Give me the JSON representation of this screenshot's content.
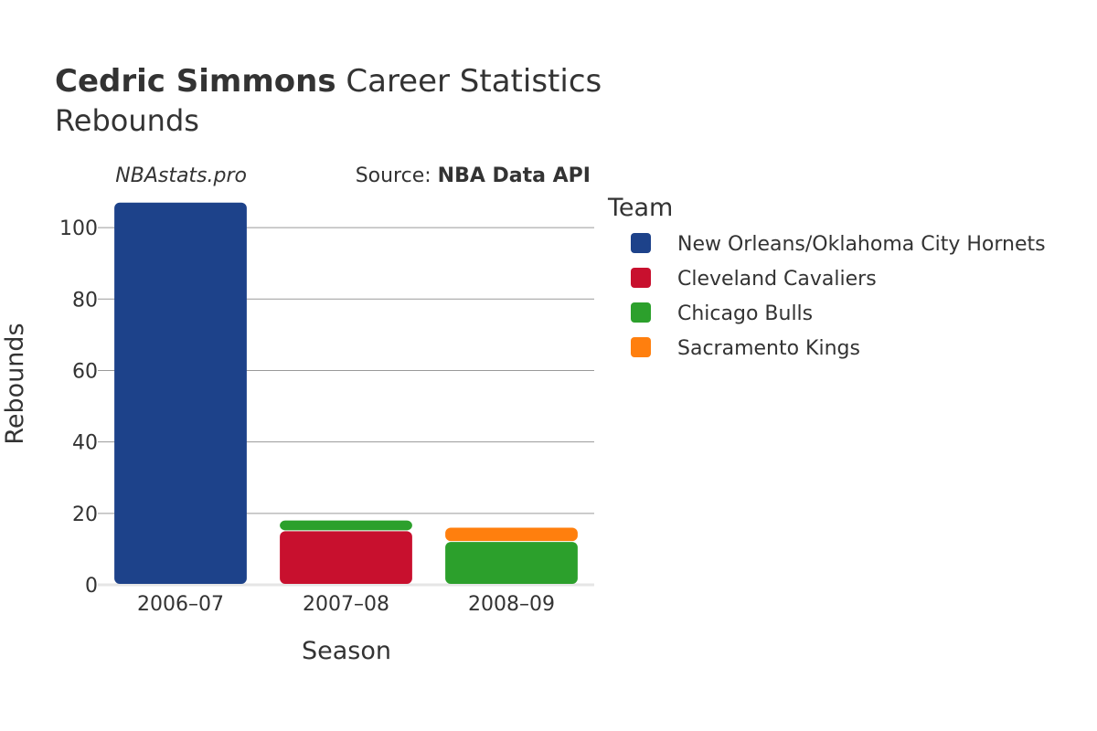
{
  "header": {
    "title_bold": "Cedric Simmons",
    "title_rest": " Career Statistics",
    "subtitle": "Rebounds"
  },
  "credits": {
    "site": "NBAstats.pro",
    "source_prefix": "Source: ",
    "source_name": "NBA Data API"
  },
  "legend": {
    "title": "Team",
    "items": [
      {
        "label": "New Orleans/Oklahoma City Hornets",
        "color": "#1d428a"
      },
      {
        "label": "Cleveland Cavaliers",
        "color": "#c8102e"
      },
      {
        "label": "Chicago Bulls",
        "color": "#2ca02c"
      },
      {
        "label": "Sacramento Kings",
        "color": "#ff7f0e"
      }
    ]
  },
  "chart_data": {
    "type": "bar",
    "stacked": true,
    "categories": [
      "2006–07",
      "2007–08",
      "2008–09"
    ],
    "series": [
      {
        "name": "New Orleans/Oklahoma City Hornets",
        "color": "#1d428a",
        "values": [
          107,
          0,
          0
        ]
      },
      {
        "name": "Cleveland Cavaliers",
        "color": "#c8102e",
        "values": [
          0,
          15,
          0
        ]
      },
      {
        "name": "Chicago Bulls",
        "color": "#2ca02c",
        "values": [
          0,
          3,
          12
        ]
      },
      {
        "name": "Sacramento Kings",
        "color": "#ff7f0e",
        "values": [
          0,
          0,
          4
        ]
      }
    ],
    "xlabel": "Season",
    "ylabel": "Rebounds",
    "ylim": [
      0,
      110
    ],
    "yticks": [
      0,
      20,
      40,
      60,
      80,
      100
    ],
    "grid": true,
    "legend_position": "right"
  }
}
